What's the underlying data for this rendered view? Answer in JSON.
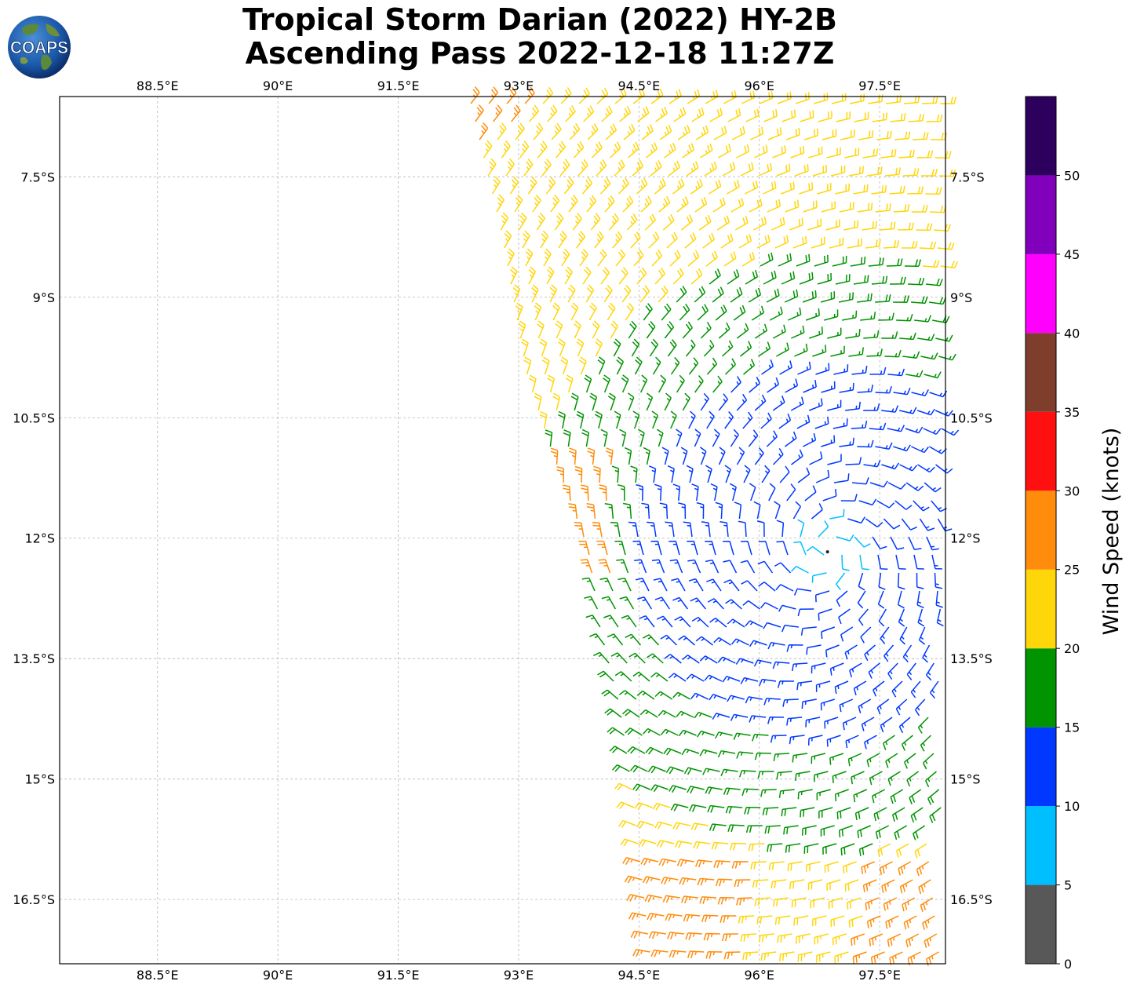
{
  "title": {
    "line1": "Tropical Storm Darian (2022) HY-2B",
    "line2": "Ascending Pass 2022-12-18 11:27Z"
  },
  "logo": {
    "text": "COAPS"
  },
  "map": {
    "lon_labels": [
      "88.5°E",
      "90°E",
      "91.5°E",
      "93°E",
      "94.5°E",
      "96°E",
      "97.5°E"
    ],
    "lon_values": [
      88.5,
      90,
      91.5,
      93,
      94.5,
      96,
      97.5
    ],
    "lat_labels": [
      "7.5°S",
      "9°S",
      "10.5°S",
      "12°S",
      "13.5°S",
      "15°S",
      "16.5°S"
    ],
    "lat_values": [
      -7.5,
      -9,
      -10.5,
      -12,
      -13.5,
      -15,
      -16.5
    ],
    "lon_range": [
      87.28,
      98.32
    ],
    "lat_range": [
      -17.3,
      -6.5
    ],
    "storm_center": {
      "lon": 96.85,
      "lat": -12.17
    },
    "gridlines": true
  },
  "colorbar": {
    "label": "Wind Speed (knots)",
    "ticks": [
      "0",
      "5",
      "10",
      "15",
      "20",
      "25",
      "30",
      "35",
      "40",
      "45",
      "50"
    ],
    "bins": [
      {
        "from": 0,
        "to": 5,
        "color": "#585858"
      },
      {
        "from": 5,
        "to": 10,
        "color": "#00bfff"
      },
      {
        "from": 10,
        "to": 15,
        "color": "#0038ff"
      },
      {
        "from": 15,
        "to": 20,
        "color": "#009400"
      },
      {
        "from": 20,
        "to": 25,
        "color": "#ffd60a"
      },
      {
        "from": 25,
        "to": 30,
        "color": "#ff8c0a"
      },
      {
        "from": 30,
        "to": 35,
        "color": "#ff1010"
      },
      {
        "from": 35,
        "to": 40,
        "color": "#7f3e2b"
      },
      {
        "from": 40,
        "to": 45,
        "color": "#ff00ff"
      },
      {
        "from": 45,
        "to": 50,
        "color": "#8000bb"
      },
      {
        "from": 50,
        "to": 55,
        "color": "#2e005e"
      }
    ]
  }
}
